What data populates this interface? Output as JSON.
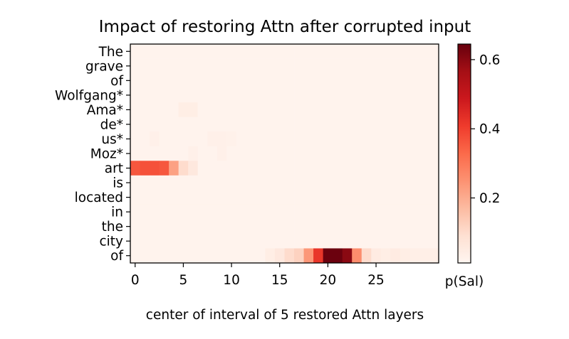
{
  "chart_data": {
    "type": "heatmap",
    "title": "Impact of restoring Attn after corrupted input",
    "xlabel": "center of interval of 5 restored Attn layers",
    "ylabel": "",
    "x_ticks": [
      0,
      5,
      10,
      15,
      20,
      25
    ],
    "x_count": 32,
    "y_labels": [
      "The",
      "grave",
      "of",
      "Wolfgang*",
      "Ama*",
      "de*",
      "us*",
      "Moz*",
      "art",
      "is",
      "located",
      "in",
      "the",
      "city",
      "of"
    ],
    "colorbar": {
      "label": "p(Sal)",
      "ticks": [
        0.2,
        0.4,
        0.6
      ],
      "range": [
        0.012,
        0.645
      ],
      "colormap": "Reds"
    },
    "baseline": 0.02,
    "cells": [
      {
        "row": 4,
        "col": 5,
        "value": 0.04
      },
      {
        "row": 4,
        "col": 6,
        "value": 0.04
      },
      {
        "row": 6,
        "col": 2,
        "value": 0.03
      },
      {
        "row": 6,
        "col": 8,
        "value": 0.03
      },
      {
        "row": 6,
        "col": 9,
        "value": 0.03
      },
      {
        "row": 6,
        "col": 10,
        "value": 0.028
      },
      {
        "row": 7,
        "col": 6,
        "value": 0.03
      },
      {
        "row": 7,
        "col": 9,
        "value": 0.03
      },
      {
        "row": 8,
        "col": 0,
        "value": 0.36
      },
      {
        "row": 8,
        "col": 1,
        "value": 0.37
      },
      {
        "row": 8,
        "col": 2,
        "value": 0.37
      },
      {
        "row": 8,
        "col": 3,
        "value": 0.36
      },
      {
        "row": 8,
        "col": 4,
        "value": 0.22
      },
      {
        "row": 8,
        "col": 5,
        "value": 0.1
      },
      {
        "row": 8,
        "col": 6,
        "value": 0.06
      },
      {
        "row": 14,
        "col": 14,
        "value": 0.04
      },
      {
        "row": 14,
        "col": 15,
        "value": 0.06
      },
      {
        "row": 14,
        "col": 16,
        "value": 0.1
      },
      {
        "row": 14,
        "col": 17,
        "value": 0.12
      },
      {
        "row": 14,
        "col": 18,
        "value": 0.24
      },
      {
        "row": 14,
        "col": 19,
        "value": 0.42
      },
      {
        "row": 14,
        "col": 20,
        "value": 0.64
      },
      {
        "row": 14,
        "col": 21,
        "value": 0.64
      },
      {
        "row": 14,
        "col": 22,
        "value": 0.6
      },
      {
        "row": 14,
        "col": 23,
        "value": 0.26
      },
      {
        "row": 14,
        "col": 24,
        "value": 0.1
      },
      {
        "row": 14,
        "col": 25,
        "value": 0.05
      },
      {
        "row": 14,
        "col": 26,
        "value": 0.04
      },
      {
        "row": 14,
        "col": 27,
        "value": 0.05
      },
      {
        "row": 14,
        "col": 28,
        "value": 0.04
      },
      {
        "row": 14,
        "col": 29,
        "value": 0.035
      },
      {
        "row": 14,
        "col": 30,
        "value": 0.035
      },
      {
        "row": 14,
        "col": 31,
        "value": 0.035
      }
    ]
  }
}
